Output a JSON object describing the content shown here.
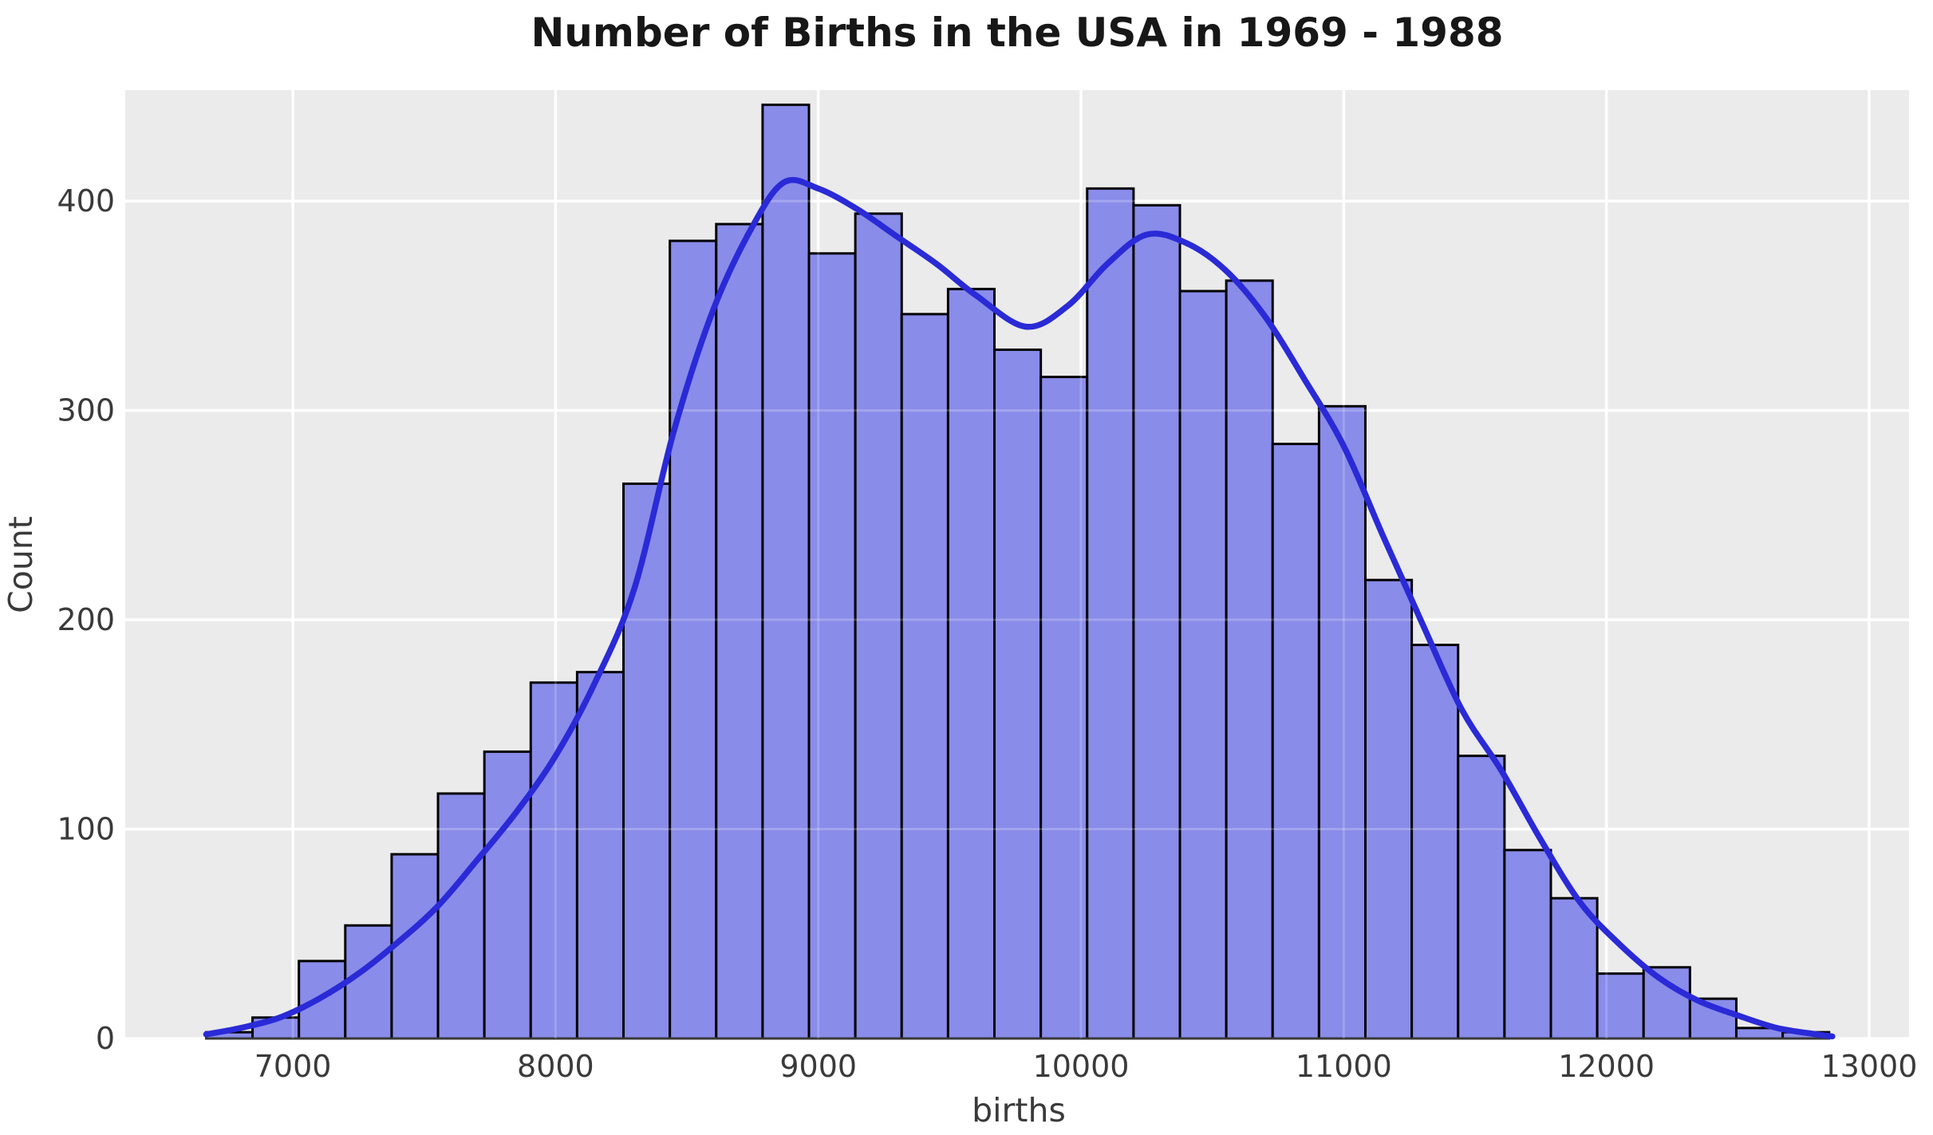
{
  "figure": {
    "title": "Number of Births in the USA in 1969 - 1988",
    "xlabel": "births",
    "ylabel": "Count"
  },
  "chart_data": {
    "type": "histogram",
    "title": "Number of Births in the USA in 1969 - 1988",
    "xlabel": "births",
    "ylabel": "Count",
    "grid": true,
    "legend": false,
    "style": "gray background with white gridlines, periwinkle bars with black edges, blue kde curve",
    "xlim": [
      6362,
      13152
    ],
    "ylim": [
      0,
      453
    ],
    "x_ticks": [
      7000,
      8000,
      9000,
      10000,
      11000,
      12000,
      13000
    ],
    "y_ticks": [
      0,
      100,
      200,
      300,
      400
    ],
    "bins": {
      "start": 6670,
      "width": 176.5,
      "count": 35
    },
    "counts": [
      3,
      10,
      37,
      54,
      88,
      117,
      137,
      170,
      175,
      265,
      381,
      389,
      446,
      375,
      394,
      346,
      358,
      329,
      316,
      406,
      398,
      357,
      362,
      284,
      302,
      219,
      188,
      135,
      90,
      67,
      31,
      34,
      19,
      5,
      3
    ],
    "kde_curve": [
      [
        6670,
        2
      ],
      [
        6800,
        5
      ],
      [
        6950,
        10
      ],
      [
        7100,
        19
      ],
      [
        7250,
        31
      ],
      [
        7400,
        46
      ],
      [
        7550,
        63
      ],
      [
        7700,
        85
      ],
      [
        7850,
        108
      ],
      [
        8000,
        135
      ],
      [
        8150,
        170
      ],
      [
        8300,
        215
      ],
      [
        8450,
        290
      ],
      [
        8600,
        348
      ],
      [
        8750,
        388
      ],
      [
        8870,
        409
      ],
      [
        9000,
        406
      ],
      [
        9150,
        396
      ],
      [
        9300,
        383
      ],
      [
        9450,
        370
      ],
      [
        9600,
        355
      ],
      [
        9790,
        340
      ],
      [
        9950,
        350
      ],
      [
        10100,
        370
      ],
      [
        10250,
        384
      ],
      [
        10400,
        380
      ],
      [
        10550,
        367
      ],
      [
        10700,
        345
      ],
      [
        10850,
        315
      ],
      [
        11000,
        283
      ],
      [
        11150,
        240
      ],
      [
        11300,
        198
      ],
      [
        11450,
        157
      ],
      [
        11600,
        128
      ],
      [
        11750,
        95
      ],
      [
        11900,
        65
      ],
      [
        12050,
        45
      ],
      [
        12200,
        29
      ],
      [
        12350,
        18
      ],
      [
        12500,
        11
      ],
      [
        12650,
        5
      ],
      [
        12800,
        2
      ],
      [
        12860,
        1
      ]
    ],
    "colors": {
      "axes_background": "#ebebeb",
      "figure_background": "#ffffff",
      "bar_fill": "#898ce9",
      "bar_edge": "#000000",
      "kde_line": "#2a2ad7",
      "gridline": "#ffffff",
      "tick_label": "#3a3a3a",
      "axis_label": "#3a3a3a",
      "title": "#171717"
    }
  }
}
